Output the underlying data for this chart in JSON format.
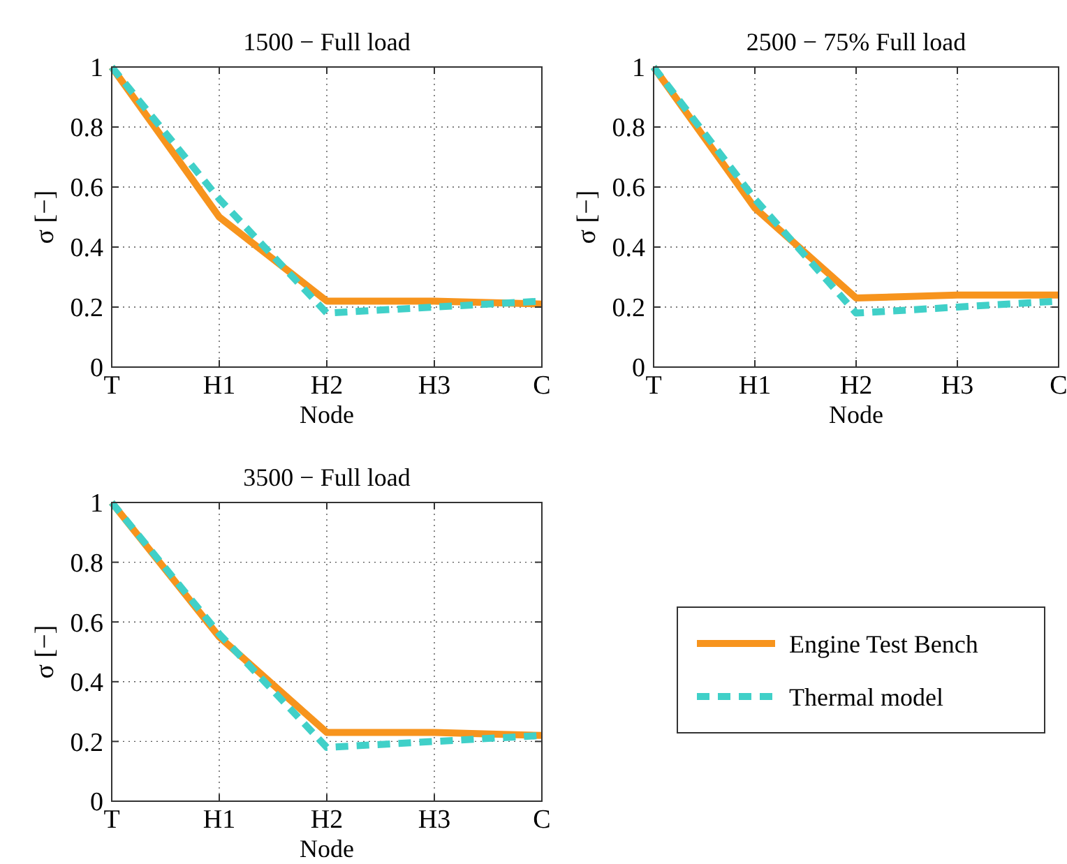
{
  "chart_data": [
    {
      "type": "line",
      "title": "1500 − Full load",
      "xlabel": "Node",
      "ylabel": "σ [−]",
      "categories": [
        "T",
        "H1",
        "H2",
        "H3",
        "C"
      ],
      "ylim": [
        0,
        1
      ],
      "yticks": [
        0,
        0.2,
        0.4,
        0.6,
        0.8,
        1
      ],
      "grid": true,
      "series": [
        {
          "color": "#f7941d",
          "line_style": "solid",
          "values": [
            1,
            0.5,
            0.22,
            0.22,
            0.21
          ]
        },
        {
          "color": "#40d0c8",
          "line_style": "dashed",
          "values": [
            1,
            0.56,
            0.18,
            0.2,
            0.22
          ]
        }
      ]
    },
    {
      "type": "line",
      "title": "2500 − 75% Full load",
      "xlabel": "Node",
      "ylabel": "σ [−]",
      "categories": [
        "T",
        "H1",
        "H2",
        "H3",
        "C"
      ],
      "ylim": [
        0,
        1
      ],
      "yticks": [
        0,
        0.2,
        0.4,
        0.6,
        0.8,
        1
      ],
      "grid": true,
      "series": [
        {
          "color": "#f7941d",
          "line_style": "solid",
          "values": [
            1,
            0.53,
            0.23,
            0.24,
            0.24
          ]
        },
        {
          "color": "#40d0c8",
          "line_style": "dashed",
          "values": [
            1,
            0.56,
            0.18,
            0.2,
            0.22
          ]
        }
      ]
    },
    {
      "type": "line",
      "title": "3500 − Full load",
      "xlabel": "Node",
      "ylabel": "σ [−]",
      "categories": [
        "T",
        "H1",
        "H2",
        "H3",
        "C"
      ],
      "ylim": [
        0,
        1
      ],
      "yticks": [
        0,
        0.2,
        0.4,
        0.6,
        0.8,
        1
      ],
      "grid": true,
      "legend": "right",
      "series": [
        {
          "name": "Engine Test Bench",
          "color": "#f7941d",
          "line_style": "solid",
          "values": [
            1,
            0.55,
            0.23,
            0.23,
            0.22
          ]
        },
        {
          "name": "Thermal model",
          "color": "#40d0c8",
          "line_style": "dashed",
          "values": [
            1,
            0.56,
            0.18,
            0.2,
            0.22
          ]
        }
      ]
    }
  ]
}
